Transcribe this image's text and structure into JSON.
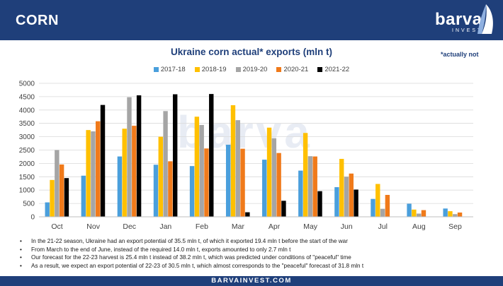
{
  "header": {
    "title": "CORN",
    "logo_word": "barva",
    "logo_sub": "INVEST"
  },
  "note": "*actually not",
  "colors": {
    "brand": "#1f3f7a",
    "s2017": "#4a9fdc",
    "s2018": "#ffc000",
    "s2019": "#a5a5a5",
    "s2020": "#f07a1a",
    "s2021": "#000000"
  },
  "chart_data": {
    "type": "bar",
    "title": "Ukraine corn actual* exports (mln t)",
    "categories": [
      "Oct",
      "Nov",
      "Dec",
      "Jan",
      "Feb",
      "Mar",
      "Apr",
      "May",
      "Jun",
      "Jul",
      "Aug",
      "Sep"
    ],
    "ylim": [
      0,
      5000
    ],
    "yticks": [
      "0",
      "500",
      "1000",
      "1500",
      "2000",
      "2500",
      "3000",
      "3500",
      "4000",
      "4500",
      "5000"
    ],
    "grid": true,
    "legend_position": "top",
    "series": [
      {
        "name": "2017-18",
        "color": "#4a9fdc",
        "values": [
          540,
          1540,
          2260,
          1950,
          1900,
          2700,
          2140,
          1730,
          1110,
          670,
          490,
          310
        ]
      },
      {
        "name": "2018-19",
        "color": "#ffc000",
        "values": [
          1380,
          3250,
          3300,
          3000,
          3750,
          4180,
          3340,
          3140,
          2170,
          1230,
          270,
          210
        ]
      },
      {
        "name": "2019-20",
        "color": "#a5a5a5",
        "values": [
          2500,
          3200,
          4480,
          3960,
          3440,
          3620,
          2940,
          2270,
          1500,
          300,
          120,
          100
        ]
      },
      {
        "name": "2020-21",
        "color": "#f07a1a",
        "values": [
          1960,
          3580,
          3410,
          2080,
          2560,
          2550,
          2390,
          2260,
          1620,
          820,
          250,
          160
        ]
      },
      {
        "name": "2021-22",
        "color": "#000000",
        "values": [
          1450,
          4190,
          4550,
          4590,
          4600,
          170,
          600,
          960,
          1020,
          null,
          null,
          null
        ]
      }
    ]
  },
  "bullets": [
    "In the 21-22 season, Ukraine had an export potential of 35.5 mln t, of which it exported 19.4 mln t before the start of the war",
    "From March to the end of June, instead of the required 14.0 mln t, exports amounted to only 2.7 mln t",
    "Our forecast for the 22-23 harvest is 25.4 mln t instead of 38.2 mln t, which was predicted under conditions of \"peaceful\" time",
    "As a result, we expect an export potential of 22-23 of 30.5 mln t, which almost corresponds to the \"peaceful\" forecast of 31.8 mln t"
  ],
  "footer": "BARVAINVEST.COM"
}
